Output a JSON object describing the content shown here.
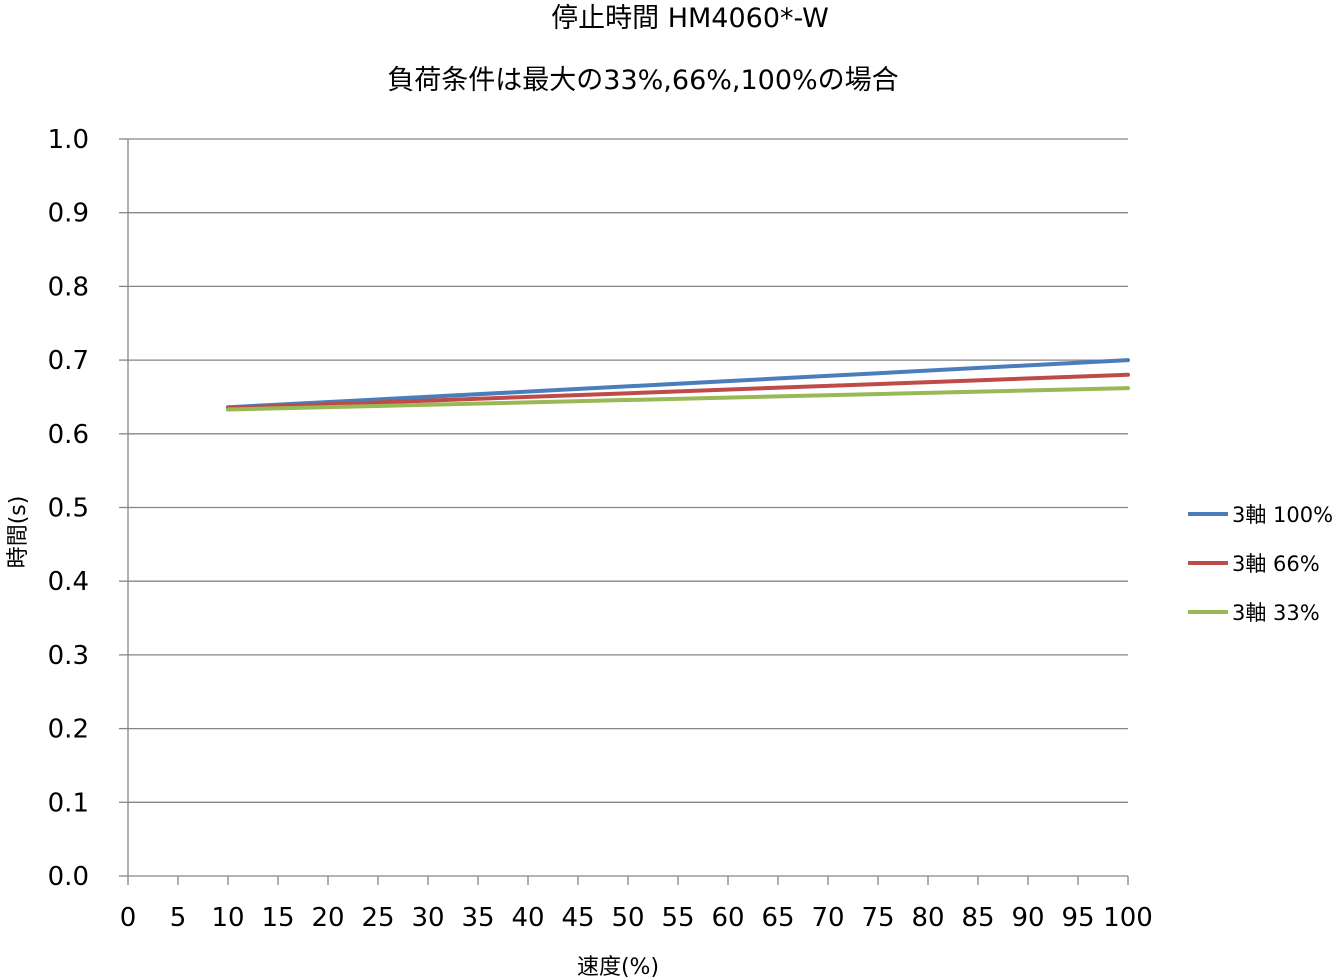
{
  "chart_data": {
    "type": "line",
    "title": "停止時間 HM4060*-W",
    "subtitle": "負荷条件は最大の33%,66%,100%の場合",
    "xlabel": "速度(%)",
    "ylabel": "時間(s)",
    "xlim": [
      0,
      100
    ],
    "ylim": [
      0,
      1.0
    ],
    "x_ticks": [
      "0",
      "5",
      "10",
      "15",
      "20",
      "25",
      "30",
      "35",
      "40",
      "45",
      "50",
      "55",
      "60",
      "65",
      "70",
      "75",
      "80",
      "85",
      "90",
      "95",
      "100"
    ],
    "y_ticks": [
      "0.0",
      "0.1",
      "0.2",
      "0.3",
      "0.4",
      "0.5",
      "0.6",
      "0.7",
      "0.8",
      "0.9",
      "1.0"
    ],
    "grid": "horizontal",
    "legend_position": "right",
    "series": [
      {
        "name": "3軸 100%",
        "color": "#4a7ebb",
        "x": [
          10,
          100
        ],
        "y": [
          0.636,
          0.7
        ]
      },
      {
        "name": "3軸 66%",
        "color": "#be4b48",
        "x": [
          10,
          100
        ],
        "y": [
          0.635,
          0.68
        ]
      },
      {
        "name": "3軸 33%",
        "color": "#98b954",
        "x": [
          10,
          100
        ],
        "y": [
          0.633,
          0.662
        ]
      }
    ]
  }
}
